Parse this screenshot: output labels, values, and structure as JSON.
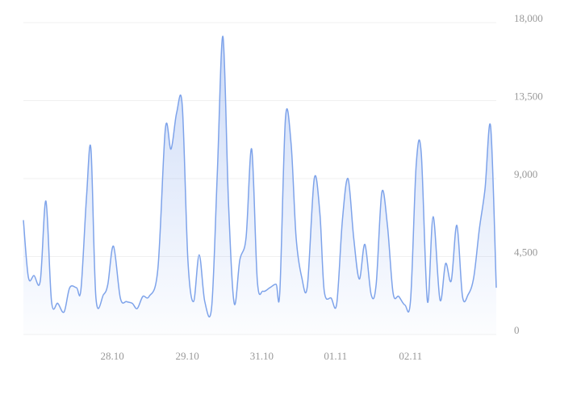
{
  "chart_data": {
    "type": "area",
    "x": [
      0,
      0.8,
      1.7,
      2.7,
      3.6,
      4.5,
      5.5,
      6.5,
      7.4,
      8.5,
      9.2,
      10.1,
      10.8,
      11.6,
      12.8,
      13.5,
      14.4,
      15.5,
      16.5,
      17.4,
      18.2,
      19.1,
      20.1,
      21.5,
      22.7,
      23.6,
      24.5,
      25.4,
      26.3,
      27.2,
      28.1,
      29.0,
      30.1,
      31.0,
      31.9,
      32.8,
      33.7,
      34.6,
      35.6,
      36.5,
      37.4,
      38.3,
      39.4,
      40.4,
      41.0,
      41.9,
      42.8,
      43.6,
      44.5,
      45.4,
      46.5,
      47.4,
      48.1,
      49.2,
      50.1,
      51.0,
      51.9,
      52.8,
      53.7,
      54.6,
      55.6,
      56.4,
      57.3,
      58.2,
      59.1,
      60.0,
      61.0,
      61.9,
      62.8,
      63.6,
      64.6,
      65.5,
      66.6,
      67.5,
      68.4,
      69.3,
      70.2,
      71.1,
      72.0,
      72.9,
      73.8,
      74.7,
      75.6
    ],
    "values": [
      6600,
      3300,
      3400,
      3100,
      7700,
      1900,
      1800,
      1300,
      2700,
      2700,
      2600,
      8000,
      10700,
      2100,
      2300,
      2900,
      5100,
      2100,
      1900,
      1800,
      1500,
      2200,
      2200,
      3800,
      11900,
      10700,
      12800,
      13200,
      4300,
      1900,
      4600,
      1900,
      1600,
      9300,
      17200,
      7500,
      1800,
      4300,
      5600,
      10700,
      3100,
      2500,
      2700,
      2900,
      2500,
      12500,
      11000,
      5600,
      3300,
      2800,
      9000,
      7000,
      2500,
      2100,
      1800,
      6600,
      9000,
      5600,
      3200,
      5200,
      2300,
      2900,
      8200,
      6300,
      2400,
      2200,
      1700,
      2000,
      9800,
      10500,
      1900,
      6800,
      2000,
      4100,
      3100,
      6300,
      2200,
      2300,
      3300,
      6100,
      8400,
      12000,
      2700
    ],
    "color": "#7ea3ea",
    "xlim": [
      0,
      75.6
    ],
    "xticks": [
      {
        "value": 14.2,
        "label": "28.10"
      },
      {
        "value": 26.2,
        "label": "29.10"
      },
      {
        "value": 38.1,
        "label": "31.10"
      },
      {
        "value": 49.9,
        "label": "01.11"
      },
      {
        "value": 61.9,
        "label": "02.11"
      }
    ],
    "ylim": [
      0,
      18000
    ],
    "yticks": [
      0,
      {
        "value": 4500,
        "label": "4,500"
      },
      {
        "value": 9000,
        "label": "9,000"
      },
      {
        "value": 13500,
        "label": "13,500"
      },
      {
        "value": 18000,
        "label": "18,000"
      }
    ],
    "grid": true
  }
}
